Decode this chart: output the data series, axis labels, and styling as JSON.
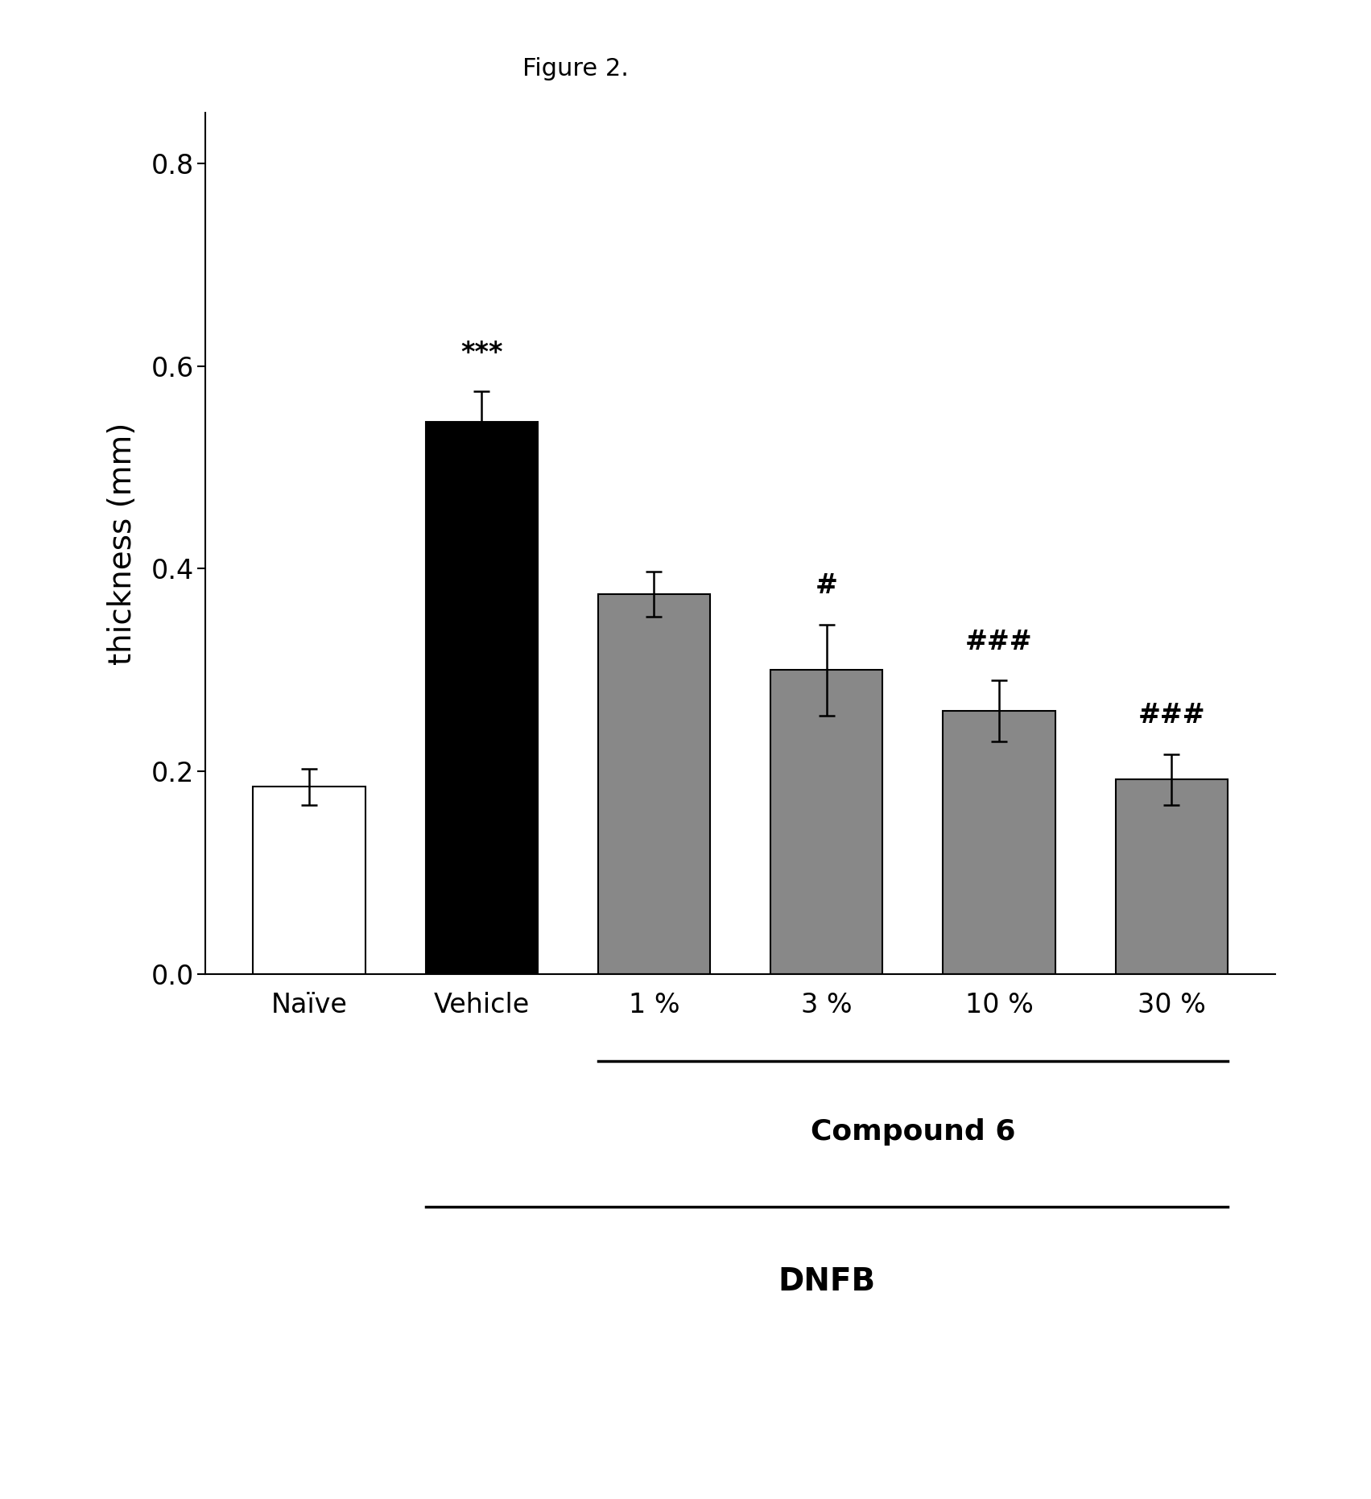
{
  "categories": [
    "Naïve",
    "Vehicle",
    "1 %",
    "3 %",
    "10 %",
    "30 %"
  ],
  "values": [
    0.185,
    0.545,
    0.375,
    0.3,
    0.26,
    0.192
  ],
  "errors": [
    0.018,
    0.03,
    0.022,
    0.045,
    0.03,
    0.025
  ],
  "bar_colors": [
    "#ffffff",
    "#000000",
    "#888888",
    "#888888",
    "#888888",
    "#888888"
  ],
  "bar_edgecolors": [
    "#000000",
    "#000000",
    "#000000",
    "#000000",
    "#000000",
    "#000000"
  ],
  "ylabel": "thickness (mm)",
  "ylim": [
    0.0,
    0.85
  ],
  "yticks": [
    0.0,
    0.2,
    0.4,
    0.6,
    0.8
  ],
  "figure_title": "Figure 2.",
  "compound6_label": "Compound 6",
  "dnfb_label": "DNFB",
  "annotations": [
    {
      "bar_index": 1,
      "text": "***",
      "fontsize": 24
    },
    {
      "bar_index": 3,
      "text": "#",
      "fontsize": 24
    },
    {
      "bar_index": 4,
      "text": "###",
      "fontsize": 24
    },
    {
      "bar_index": 5,
      "text": "###",
      "fontsize": 24
    }
  ],
  "background_color": "#ffffff",
  "bar_width": 0.65,
  "figsize": [
    17.03,
    18.62
  ],
  "dpi": 100
}
